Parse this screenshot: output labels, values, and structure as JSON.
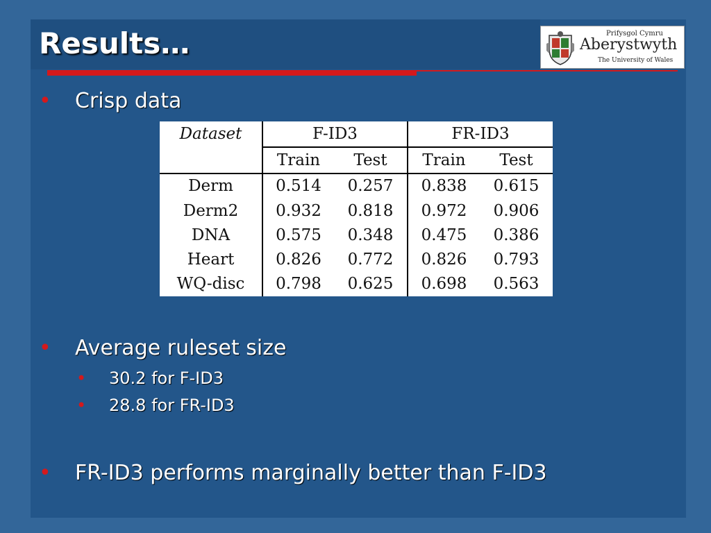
{
  "title": "Results…",
  "logo": {
    "line1": "Prifysgol Cymru",
    "line2": "Aberystwyth",
    "line3": "The University of Wales"
  },
  "bullets": {
    "crisp": "Crisp data",
    "ruleset": "Average ruleset size",
    "sub1": "30.2 for F-ID3",
    "sub2": "28.8 for FR-ID3",
    "conclusion": "FR-ID3 performs marginally better than F-ID3"
  },
  "table": {
    "dataset_header": "Dataset",
    "group1": "F-ID3",
    "group2": "FR-ID3",
    "train": "Train",
    "test": "Test",
    "rows": [
      {
        "name": "Derm",
        "fid3_train": "0.514",
        "fid3_test": "0.257",
        "frid3_train": "0.838",
        "frid3_test": "0.615"
      },
      {
        "name": "Derm2",
        "fid3_train": "0.932",
        "fid3_test": "0.818",
        "frid3_train": "0.972",
        "frid3_test": "0.906"
      },
      {
        "name": "DNA",
        "fid3_train": "0.575",
        "fid3_test": "0.348",
        "frid3_train": "0.475",
        "frid3_test": "0.386"
      },
      {
        "name": "Heart",
        "fid3_train": "0.826",
        "fid3_test": "0.772",
        "frid3_train": "0.826",
        "frid3_test": "0.793"
      },
      {
        "name": "WQ-disc",
        "fid3_train": "0.798",
        "fid3_test": "0.625",
        "frid3_train": "0.698",
        "frid3_test": "0.563"
      }
    ]
  },
  "colors": {
    "background": "#336699",
    "panel": "#23568a",
    "accent": "#d4191c"
  }
}
